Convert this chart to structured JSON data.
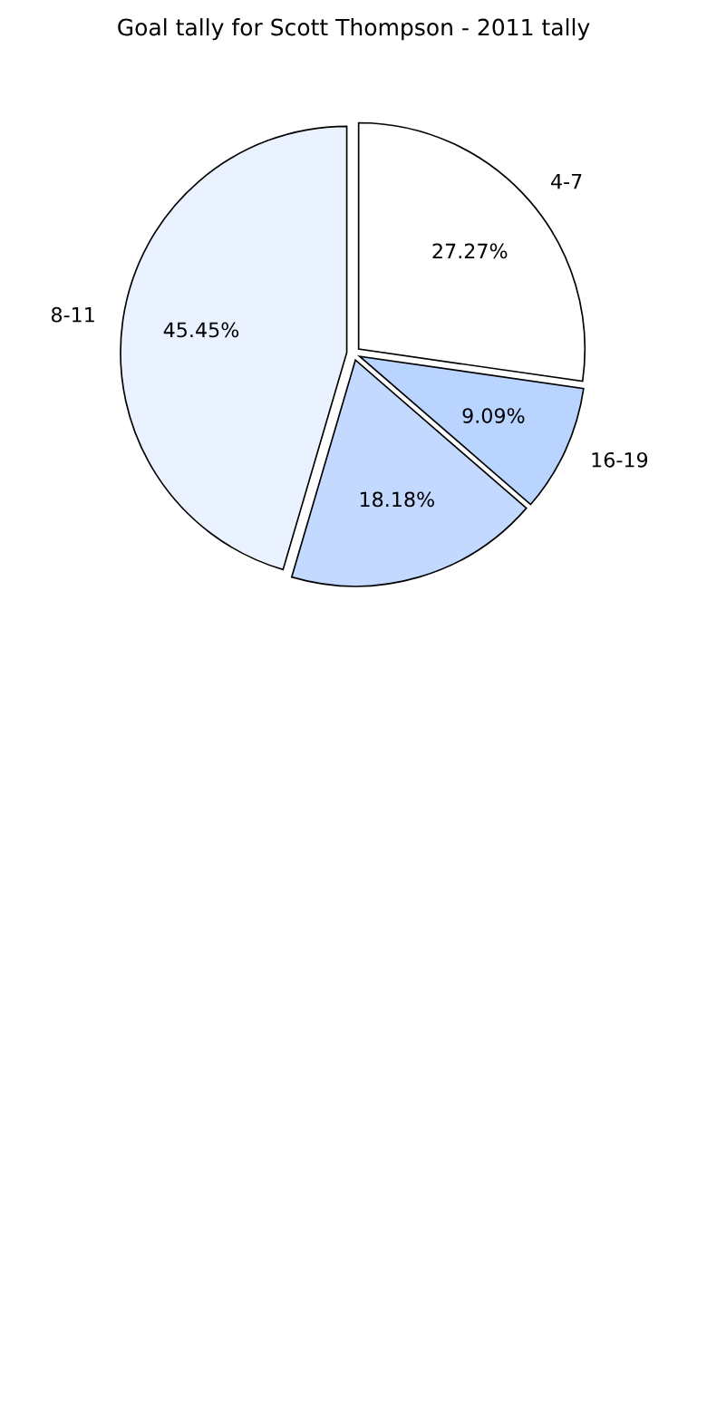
{
  "chart_data": {
    "type": "pie",
    "title": "Goal tally for Scott Thompson - 2011 tally",
    "categories": [
      "4-7",
      "16-19",
      null,
      "8-11"
    ],
    "values": [
      27.27,
      9.09,
      18.18,
      45.45
    ],
    "value_labels": [
      "27.27%",
      "9.09%",
      "18.18%",
      "45.45%"
    ],
    "colors": [
      "#ffffff",
      "#b8d4ff",
      "#c3d9ff",
      "#ebf2ff"
    ],
    "legend": false
  }
}
